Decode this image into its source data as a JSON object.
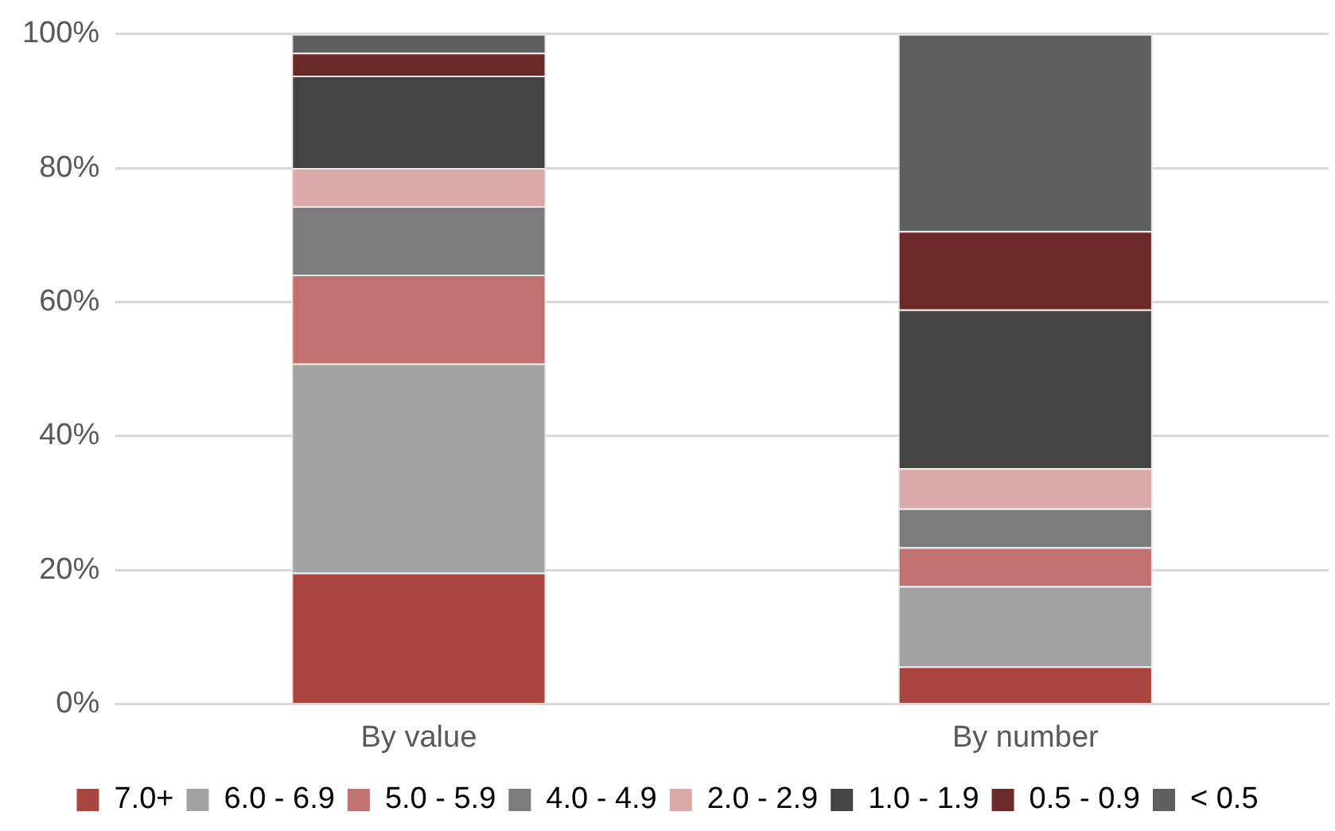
{
  "chart_data": {
    "type": "bar",
    "stacked": true,
    "categories": [
      "By value",
      "By number"
    ],
    "series": [
      {
        "name": "7.0+",
        "color": "#aa4441",
        "values": [
          19.6,
          5.6
        ]
      },
      {
        "name": "6.0 - 6.9",
        "color": "#a2a2a2",
        "values": [
          31.2,
          12.0
        ]
      },
      {
        "name": "5.0 - 5.9",
        "color": "#c37170",
        "values": [
          13.3,
          5.8
        ]
      },
      {
        "name": "4.0 - 4.9",
        "color": "#7c7c7c",
        "values": [
          10.2,
          5.8
        ]
      },
      {
        "name": "2.0 - 2.9",
        "color": "#dba9a8",
        "values": [
          5.7,
          6.0
        ]
      },
      {
        "name": "1.0 - 1.9",
        "color": "#444444",
        "values": [
          13.8,
          23.7
        ]
      },
      {
        "name": "0.5 - 0.9",
        "color": "#6a2828",
        "values": [
          3.4,
          11.7
        ]
      },
      {
        "name": "< 0.5",
        "color": "#5f5f5f",
        "values": [
          2.8,
          29.4
        ]
      }
    ],
    "ylim": [
      0,
      100
    ],
    "yticks": [
      {
        "value": 0,
        "label": "0%"
      },
      {
        "value": 20,
        "label": "20%"
      },
      {
        "value": 40,
        "label": "40%"
      },
      {
        "value": 60,
        "label": "60%"
      },
      {
        "value": 80,
        "label": "80%"
      },
      {
        "value": 100,
        "label": "100%"
      }
    ],
    "grid": "y",
    "legend": "bottom"
  }
}
